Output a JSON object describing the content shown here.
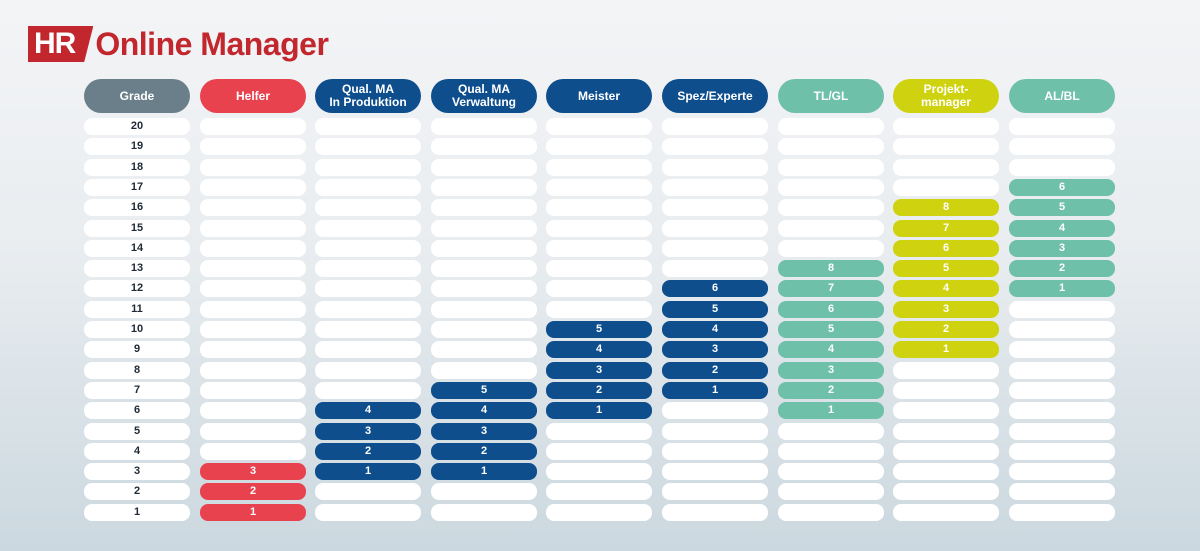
{
  "brand": {
    "hr": "HR",
    "name": "Online Manager"
  },
  "colors": {
    "grade": "#6b7f8a",
    "helfer": "#e8424f",
    "blue": "#0e4e8d",
    "teal": "#6fc0a8",
    "lime": "#cfd30f"
  },
  "rows": [
    20,
    19,
    18,
    17,
    16,
    15,
    14,
    13,
    12,
    11,
    10,
    9,
    8,
    7,
    6,
    5,
    4,
    3,
    2,
    1
  ],
  "columns": [
    {
      "id": "grade",
      "label": "Grade",
      "color": "#6b7f8a",
      "grade_col": true,
      "cells": []
    },
    {
      "id": "helfer",
      "label": "Helfer",
      "color": "#e8424f",
      "cells": [
        {
          "grade": 3,
          "value": "3"
        },
        {
          "grade": 2,
          "value": "2"
        },
        {
          "grade": 1,
          "value": "1"
        }
      ]
    },
    {
      "id": "qual-ma-produktion",
      "label": "Qual. MA\nIn Produktion",
      "color": "#0e4e8d",
      "cells": [
        {
          "grade": 6,
          "value": "4"
        },
        {
          "grade": 5,
          "value": "3"
        },
        {
          "grade": 4,
          "value": "2"
        },
        {
          "grade": 3,
          "value": "1"
        }
      ]
    },
    {
      "id": "qual-ma-verwaltung",
      "label": "Qual. MA\nVerwaltung",
      "color": "#0e4e8d",
      "cells": [
        {
          "grade": 7,
          "value": "5"
        },
        {
          "grade": 6,
          "value": "4"
        },
        {
          "grade": 5,
          "value": "3"
        },
        {
          "grade": 4,
          "value": "2"
        },
        {
          "grade": 3,
          "value": "1"
        }
      ]
    },
    {
      "id": "meister",
      "label": "Meister",
      "color": "#0e4e8d",
      "cells": [
        {
          "grade": 10,
          "value": "5"
        },
        {
          "grade": 9,
          "value": "4"
        },
        {
          "grade": 8,
          "value": "3"
        },
        {
          "grade": 7,
          "value": "2"
        },
        {
          "grade": 6,
          "value": "1"
        }
      ]
    },
    {
      "id": "spez-experte",
      "label": "Spez/Experte",
      "color": "#0e4e8d",
      "cells": [
        {
          "grade": 12,
          "value": "6"
        },
        {
          "grade": 11,
          "value": "5"
        },
        {
          "grade": 10,
          "value": "4"
        },
        {
          "grade": 9,
          "value": "3"
        },
        {
          "grade": 8,
          "value": "2"
        },
        {
          "grade": 7,
          "value": "1"
        }
      ]
    },
    {
      "id": "tl-gl",
      "label": "TL/GL",
      "color": "#6fc0a8",
      "cells": [
        {
          "grade": 13,
          "value": "8"
        },
        {
          "grade": 12,
          "value": "7"
        },
        {
          "grade": 11,
          "value": "6"
        },
        {
          "grade": 10,
          "value": "5"
        },
        {
          "grade": 9,
          "value": "4"
        },
        {
          "grade": 8,
          "value": "3"
        },
        {
          "grade": 7,
          "value": "2"
        },
        {
          "grade": 6,
          "value": "1"
        }
      ]
    },
    {
      "id": "projektmanager",
      "label": "Projekt-\nmanager",
      "color": "#cfd30f",
      "cells": [
        {
          "grade": 16,
          "value": "8"
        },
        {
          "grade": 15,
          "value": "7"
        },
        {
          "grade": 14,
          "value": "6"
        },
        {
          "grade": 13,
          "value": "5"
        },
        {
          "grade": 12,
          "value": "4"
        },
        {
          "grade": 11,
          "value": "3"
        },
        {
          "grade": 10,
          "value": "2"
        },
        {
          "grade": 9,
          "value": "1"
        }
      ]
    },
    {
      "id": "al-bl",
      "label": "AL/BL",
      "color": "#6fc0a8",
      "cells": [
        {
          "grade": 17,
          "value": "6"
        },
        {
          "grade": 16,
          "value": "5"
        },
        {
          "grade": 15,
          "value": "4"
        },
        {
          "grade": 14,
          "value": "3"
        },
        {
          "grade": 13,
          "value": "2"
        },
        {
          "grade": 12,
          "value": "1"
        }
      ]
    }
  ]
}
